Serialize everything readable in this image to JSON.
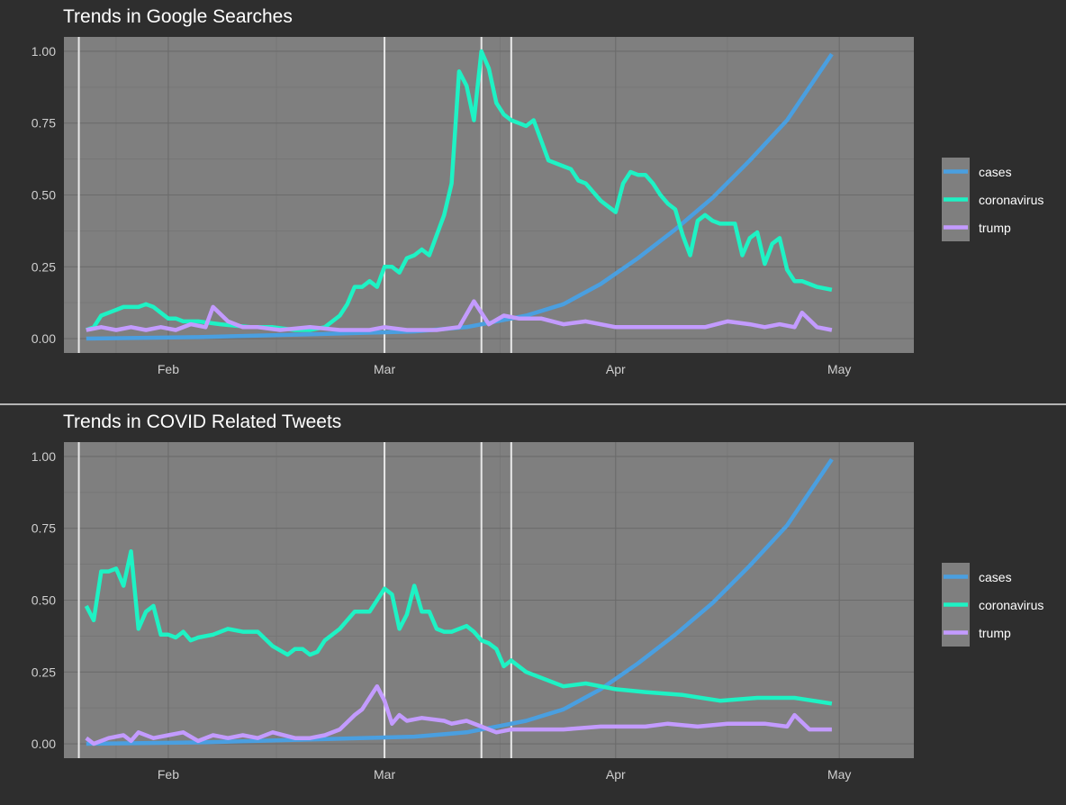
{
  "colors": {
    "background": "#2e2e2e",
    "panel": "#7f7f7f",
    "grid_major": "#6b6b6b",
    "grid_minor": "#747474",
    "vline": "#e8e8e8",
    "separator": "#e0e0e0",
    "text": "#ffffff",
    "tick_text": "#cfcfcf",
    "series": {
      "cases": "#4a9fe0",
      "coronavirus": "#1ef2c4",
      "trump": "#c39bff"
    }
  },
  "chart_data": [
    {
      "type": "line",
      "title": "Trends in Google Searches",
      "xlabel": "",
      "ylabel": "",
      "x_ticks": [
        "Feb",
        "Mar",
        "Apr",
        "May"
      ],
      "x_tick_dates": [
        "2020-02-01",
        "2020-03-01",
        "2020-04-01",
        "2020-05-01"
      ],
      "xlim": [
        "2020-01-18",
        "2020-05-11"
      ],
      "y_ticks": [
        "0.00",
        "0.25",
        "0.50",
        "0.75",
        "1.00"
      ],
      "ylim": [
        -0.05,
        1.05
      ],
      "grid": true,
      "legend_position": "right",
      "vertical_lines": [
        "2020-01-20",
        "2020-03-01",
        "2020-03-14",
        "2020-03-18"
      ],
      "series": [
        {
          "name": "cases",
          "x": [
            "2020-01-21",
            "2020-02-05",
            "2020-02-20",
            "2020-03-05",
            "2020-03-12",
            "2020-03-16",
            "2020-03-20",
            "2020-03-25",
            "2020-03-30",
            "2020-04-04",
            "2020-04-09",
            "2020-04-14",
            "2020-04-19",
            "2020-04-24",
            "2020-04-30"
          ],
          "y": [
            0.0,
            0.005,
            0.015,
            0.025,
            0.04,
            0.06,
            0.08,
            0.12,
            0.19,
            0.28,
            0.38,
            0.49,
            0.62,
            0.76,
            0.99
          ]
        },
        {
          "name": "coronavirus",
          "x": [
            "2020-01-21",
            "2020-01-22",
            "2020-01-23",
            "2020-01-24",
            "2020-01-25",
            "2020-01-26",
            "2020-01-27",
            "2020-01-28",
            "2020-01-29",
            "2020-01-30",
            "2020-01-31",
            "2020-02-01",
            "2020-02-02",
            "2020-02-03",
            "2020-02-04",
            "2020-02-05",
            "2020-02-08",
            "2020-02-12",
            "2020-02-15",
            "2020-02-18",
            "2020-02-20",
            "2020-02-22",
            "2020-02-24",
            "2020-02-25",
            "2020-02-26",
            "2020-02-27",
            "2020-02-28",
            "2020-02-29",
            "2020-03-01",
            "2020-03-02",
            "2020-03-03",
            "2020-03-04",
            "2020-03-05",
            "2020-03-06",
            "2020-03-07",
            "2020-03-08",
            "2020-03-09",
            "2020-03-10",
            "2020-03-11",
            "2020-03-12",
            "2020-03-13",
            "2020-03-14",
            "2020-03-15",
            "2020-03-16",
            "2020-03-17",
            "2020-03-18",
            "2020-03-19",
            "2020-03-20",
            "2020-03-21",
            "2020-03-22",
            "2020-03-23",
            "2020-03-24",
            "2020-03-25",
            "2020-03-26",
            "2020-03-27",
            "2020-03-28",
            "2020-03-29",
            "2020-03-30",
            "2020-03-31",
            "2020-04-01",
            "2020-04-02",
            "2020-04-03",
            "2020-04-04",
            "2020-04-05",
            "2020-04-06",
            "2020-04-07",
            "2020-04-08",
            "2020-04-09",
            "2020-04-10",
            "2020-04-11",
            "2020-04-12",
            "2020-04-13",
            "2020-04-14",
            "2020-04-15",
            "2020-04-16",
            "2020-04-17",
            "2020-04-18",
            "2020-04-19",
            "2020-04-20",
            "2020-04-21",
            "2020-04-22",
            "2020-04-23",
            "2020-04-24",
            "2020-04-25",
            "2020-04-26",
            "2020-04-27",
            "2020-04-28",
            "2020-04-30"
          ],
          "y": [
            0.03,
            0.04,
            0.08,
            0.09,
            0.1,
            0.11,
            0.11,
            0.11,
            0.12,
            0.11,
            0.09,
            0.07,
            0.07,
            0.06,
            0.06,
            0.06,
            0.05,
            0.04,
            0.04,
            0.03,
            0.03,
            0.04,
            0.08,
            0.12,
            0.18,
            0.18,
            0.2,
            0.18,
            0.25,
            0.25,
            0.23,
            0.28,
            0.29,
            0.31,
            0.29,
            0.36,
            0.43,
            0.54,
            0.93,
            0.88,
            0.76,
            1.0,
            0.94,
            0.82,
            0.78,
            0.76,
            0.75,
            0.74,
            0.76,
            0.69,
            0.62,
            0.61,
            0.6,
            0.59,
            0.55,
            0.54,
            0.51,
            0.48,
            0.46,
            0.44,
            0.54,
            0.58,
            0.57,
            0.57,
            0.54,
            0.5,
            0.47,
            0.45,
            0.36,
            0.29,
            0.41,
            0.43,
            0.41,
            0.4,
            0.4,
            0.4,
            0.29,
            0.35,
            0.37,
            0.26,
            0.33,
            0.35,
            0.24,
            0.2,
            0.2,
            0.19,
            0.18,
            0.17
          ]
        },
        {
          "name": "trump",
          "x": [
            "2020-01-21",
            "2020-01-23",
            "2020-01-25",
            "2020-01-27",
            "2020-01-29",
            "2020-01-31",
            "2020-02-02",
            "2020-02-04",
            "2020-02-06",
            "2020-02-07",
            "2020-02-09",
            "2020-02-11",
            "2020-02-13",
            "2020-02-16",
            "2020-02-20",
            "2020-02-24",
            "2020-02-28",
            "2020-03-01",
            "2020-03-04",
            "2020-03-08",
            "2020-03-11",
            "2020-03-13",
            "2020-03-15",
            "2020-03-17",
            "2020-03-19",
            "2020-03-22",
            "2020-03-25",
            "2020-03-28",
            "2020-04-01",
            "2020-04-05",
            "2020-04-09",
            "2020-04-13",
            "2020-04-16",
            "2020-04-19",
            "2020-04-21",
            "2020-04-23",
            "2020-04-25",
            "2020-04-26",
            "2020-04-28",
            "2020-04-30"
          ],
          "y": [
            0.03,
            0.04,
            0.03,
            0.04,
            0.03,
            0.04,
            0.03,
            0.05,
            0.04,
            0.11,
            0.06,
            0.04,
            0.04,
            0.03,
            0.04,
            0.03,
            0.03,
            0.04,
            0.03,
            0.03,
            0.04,
            0.13,
            0.05,
            0.08,
            0.07,
            0.07,
            0.05,
            0.06,
            0.04,
            0.04,
            0.04,
            0.04,
            0.06,
            0.05,
            0.04,
            0.05,
            0.04,
            0.09,
            0.04,
            0.03
          ]
        }
      ]
    },
    {
      "type": "line",
      "title": "Trends in COVID Related Tweets",
      "xlabel": "",
      "ylabel": "",
      "x_ticks": [
        "Feb",
        "Mar",
        "Apr",
        "May"
      ],
      "x_tick_dates": [
        "2020-02-01",
        "2020-03-01",
        "2020-04-01",
        "2020-05-01"
      ],
      "xlim": [
        "2020-01-18",
        "2020-05-11"
      ],
      "y_ticks": [
        "0.00",
        "0.25",
        "0.50",
        "0.75",
        "1.00"
      ],
      "ylim": [
        -0.05,
        1.05
      ],
      "grid": true,
      "legend_position": "right",
      "vertical_lines": [
        "2020-01-20",
        "2020-03-01",
        "2020-03-14",
        "2020-03-18"
      ],
      "series": [
        {
          "name": "cases",
          "x": [
            "2020-01-21",
            "2020-02-05",
            "2020-02-20",
            "2020-03-05",
            "2020-03-12",
            "2020-03-16",
            "2020-03-20",
            "2020-03-25",
            "2020-03-30",
            "2020-04-04",
            "2020-04-09",
            "2020-04-14",
            "2020-04-19",
            "2020-04-24",
            "2020-04-30"
          ],
          "y": [
            0.0,
            0.005,
            0.015,
            0.025,
            0.04,
            0.06,
            0.08,
            0.12,
            0.19,
            0.28,
            0.38,
            0.49,
            0.62,
            0.76,
            0.99
          ]
        },
        {
          "name": "coronavirus",
          "x": [
            "2020-01-21",
            "2020-01-22",
            "2020-01-23",
            "2020-01-24",
            "2020-01-25",
            "2020-01-26",
            "2020-01-27",
            "2020-01-28",
            "2020-01-29",
            "2020-01-30",
            "2020-01-31",
            "2020-02-01",
            "2020-02-02",
            "2020-02-03",
            "2020-02-04",
            "2020-02-05",
            "2020-02-07",
            "2020-02-09",
            "2020-02-11",
            "2020-02-13",
            "2020-02-15",
            "2020-02-17",
            "2020-02-18",
            "2020-02-19",
            "2020-02-20",
            "2020-02-21",
            "2020-02-22",
            "2020-02-24",
            "2020-02-26",
            "2020-02-28",
            "2020-03-01",
            "2020-03-02",
            "2020-03-03",
            "2020-03-04",
            "2020-03-05",
            "2020-03-06",
            "2020-03-07",
            "2020-03-08",
            "2020-03-09",
            "2020-03-10",
            "2020-03-12",
            "2020-03-13",
            "2020-03-14",
            "2020-03-15",
            "2020-03-16",
            "2020-03-17",
            "2020-03-18",
            "2020-03-20",
            "2020-03-22",
            "2020-03-25",
            "2020-03-28",
            "2020-04-01",
            "2020-04-05",
            "2020-04-10",
            "2020-04-15",
            "2020-04-20",
            "2020-04-25",
            "2020-04-30"
          ],
          "y": [
            0.48,
            0.43,
            0.6,
            0.6,
            0.61,
            0.55,
            0.67,
            0.4,
            0.46,
            0.48,
            0.38,
            0.38,
            0.37,
            0.39,
            0.36,
            0.37,
            0.38,
            0.4,
            0.39,
            0.39,
            0.34,
            0.31,
            0.33,
            0.33,
            0.31,
            0.32,
            0.36,
            0.4,
            0.46,
            0.46,
            0.54,
            0.52,
            0.4,
            0.45,
            0.55,
            0.46,
            0.46,
            0.4,
            0.39,
            0.39,
            0.41,
            0.39,
            0.36,
            0.35,
            0.33,
            0.27,
            0.29,
            0.25,
            0.23,
            0.2,
            0.21,
            0.19,
            0.18,
            0.17,
            0.15,
            0.16,
            0.16,
            0.14
          ]
        },
        {
          "name": "trump",
          "x": [
            "2020-01-21",
            "2020-01-22",
            "2020-01-24",
            "2020-01-26",
            "2020-01-27",
            "2020-01-28",
            "2020-01-30",
            "2020-02-01",
            "2020-02-03",
            "2020-02-05",
            "2020-02-07",
            "2020-02-09",
            "2020-02-11",
            "2020-02-13",
            "2020-02-15",
            "2020-02-18",
            "2020-02-20",
            "2020-02-22",
            "2020-02-24",
            "2020-02-26",
            "2020-02-27",
            "2020-02-28",
            "2020-02-29",
            "2020-03-01",
            "2020-03-02",
            "2020-03-03",
            "2020-03-04",
            "2020-03-06",
            "2020-03-09",
            "2020-03-10",
            "2020-03-12",
            "2020-03-14",
            "2020-03-16",
            "2020-03-18",
            "2020-03-20",
            "2020-03-25",
            "2020-03-30",
            "2020-04-05",
            "2020-04-08",
            "2020-04-12",
            "2020-04-16",
            "2020-04-21",
            "2020-04-24",
            "2020-04-25",
            "2020-04-27",
            "2020-04-30"
          ],
          "y": [
            0.02,
            0.0,
            0.02,
            0.03,
            0.01,
            0.04,
            0.02,
            0.03,
            0.04,
            0.01,
            0.03,
            0.02,
            0.03,
            0.02,
            0.04,
            0.02,
            0.02,
            0.03,
            0.05,
            0.1,
            0.12,
            0.16,
            0.2,
            0.15,
            0.07,
            0.1,
            0.08,
            0.09,
            0.08,
            0.07,
            0.08,
            0.06,
            0.04,
            0.05,
            0.05,
            0.05,
            0.06,
            0.06,
            0.07,
            0.06,
            0.07,
            0.07,
            0.06,
            0.1,
            0.05,
            0.05
          ]
        }
      ]
    }
  ]
}
